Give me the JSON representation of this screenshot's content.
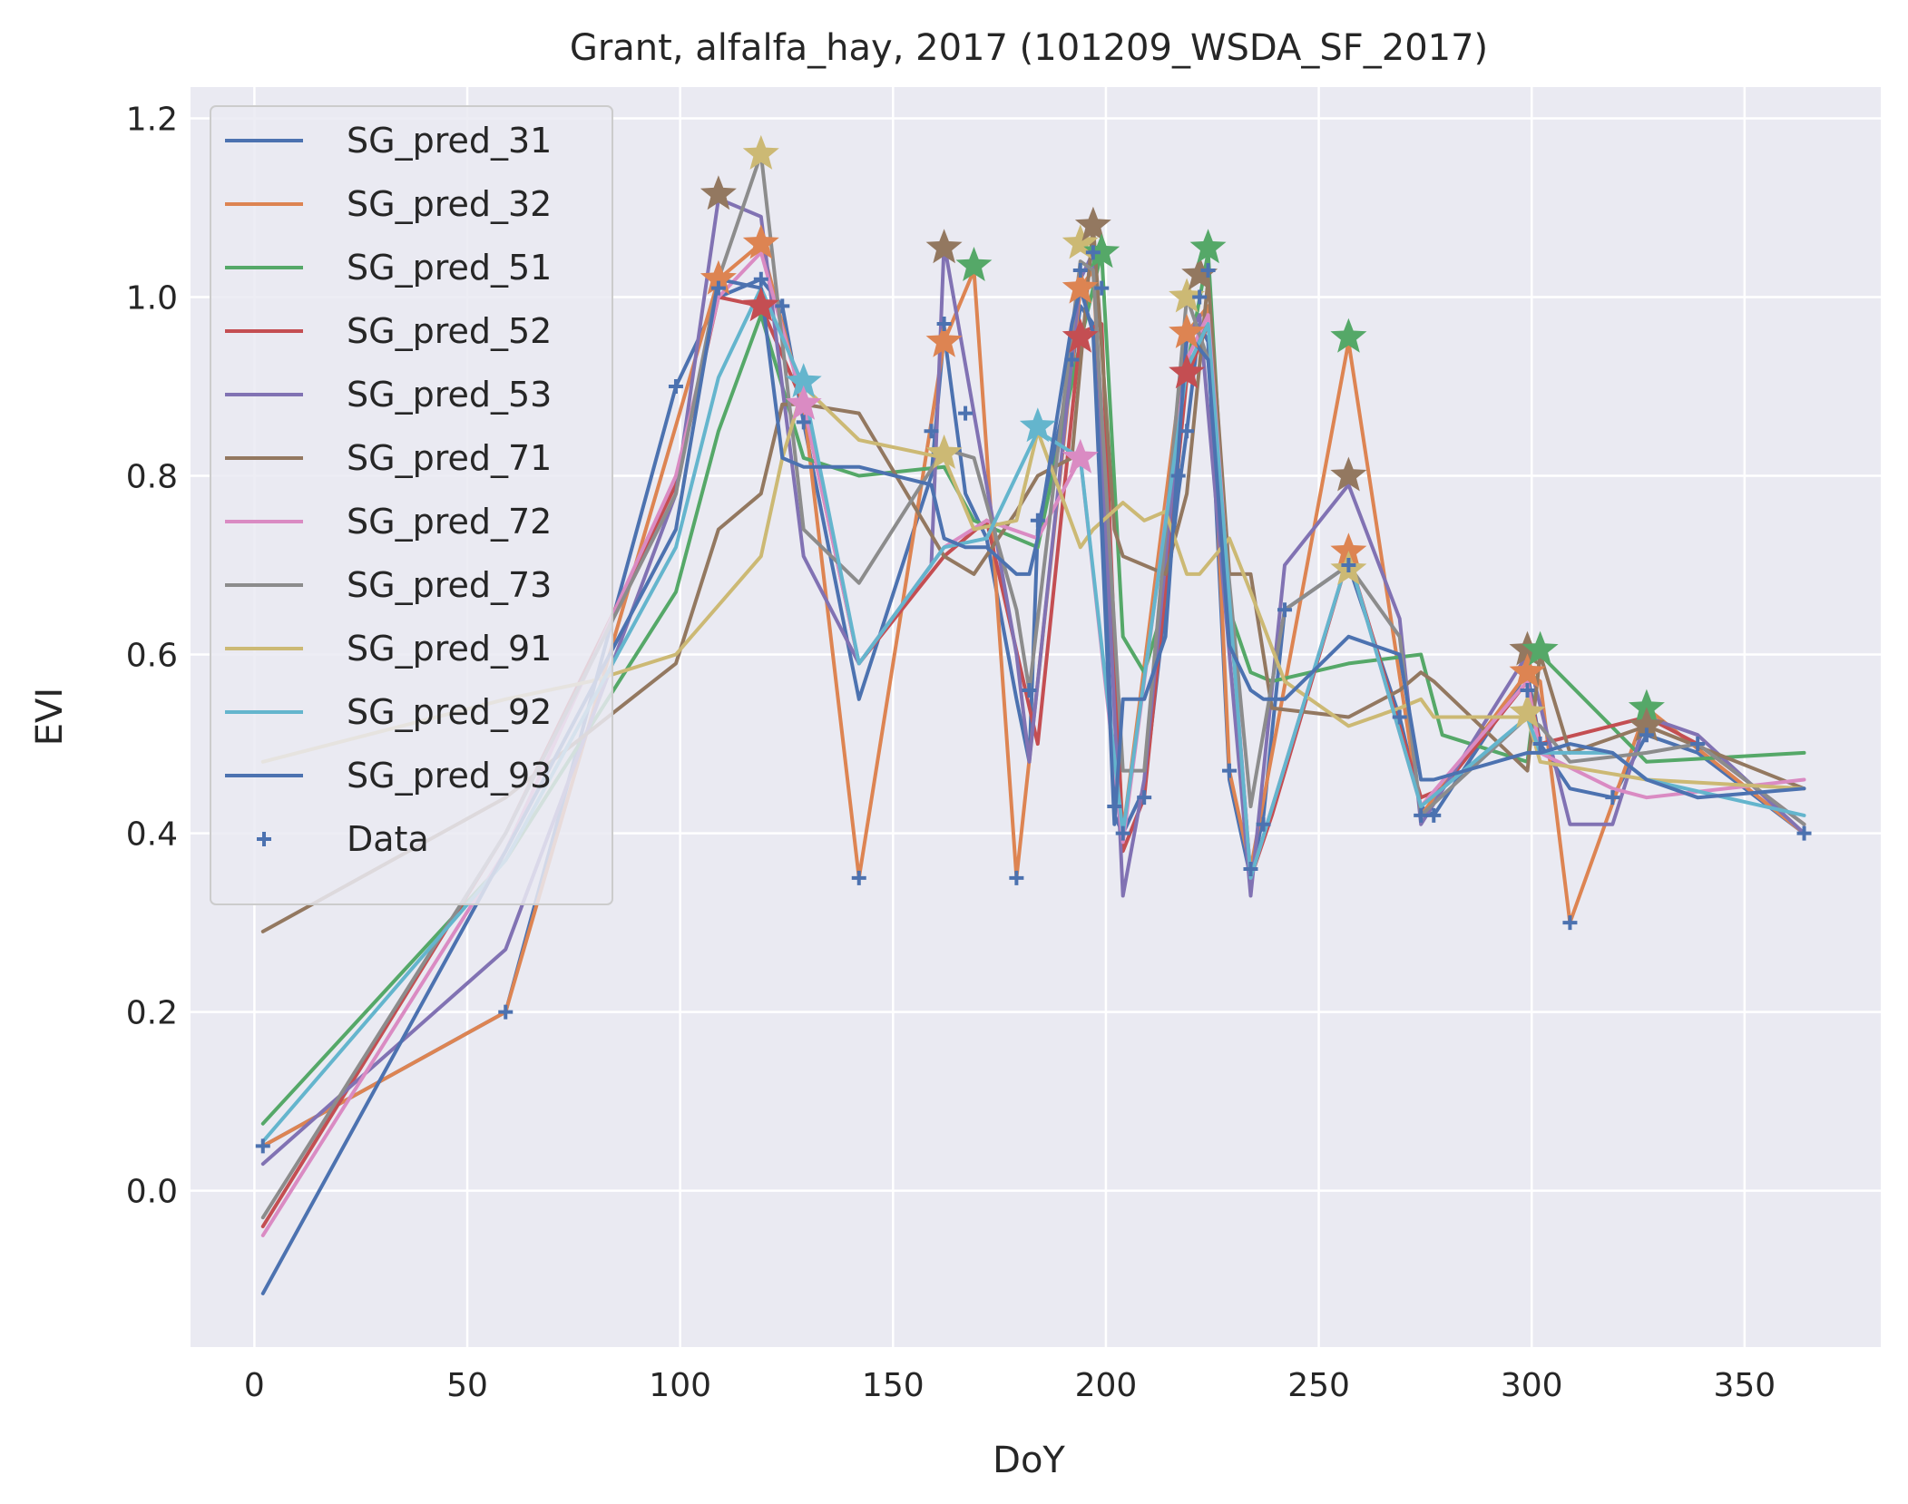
{
  "chart_data": {
    "type": "line",
    "title": "Grant, alfalfa_hay, 2017 (101209_WSDA_SF_2017)",
    "xlabel": "DoY",
    "ylabel": "EVI",
    "xlim": [
      -15,
      382
    ],
    "ylim": [
      -0.175,
      1.235
    ],
    "xticks": [
      0,
      50,
      100,
      150,
      200,
      250,
      300,
      350
    ],
    "yticks": [
      0.0,
      0.2,
      0.4,
      0.6,
      0.8,
      1.0,
      1.2
    ],
    "grid": true,
    "legend_position": "top-left",
    "background": "#eaeaf2",
    "series": [
      {
        "name": "SG_pred_31",
        "color": "#4c72b0",
        "x": [
          2,
          59,
          99,
          109,
          119,
          124,
          129,
          142,
          159,
          162,
          167,
          172,
          179,
          182,
          184,
          192,
          194,
          197,
          199,
          202,
          204,
          207,
          209,
          217,
          219,
          222,
          224,
          229,
          234,
          237,
          242,
          257,
          269,
          274,
          277,
          299,
          302,
          309,
          319,
          327,
          339,
          364
        ],
        "y": [
          0.05,
          0.2,
          0.9,
          1.0,
          1.02,
          0.99,
          0.86,
          0.55,
          0.8,
          0.96,
          0.78,
          0.73,
          0.55,
          0.48,
          0.74,
          0.92,
          0.99,
          0.97,
          0.8,
          0.42,
          0.4,
          0.43,
          0.45,
          0.78,
          0.85,
          0.97,
          0.95,
          0.46,
          0.35,
          0.42,
          0.65,
          0.7,
          0.53,
          0.43,
          0.42,
          0.58,
          0.5,
          0.45,
          0.44,
          0.51,
          0.49,
          0.4
        ]
      },
      {
        "name": "SG_pred_32",
        "color": "#dd8452",
        "x": [
          2,
          59,
          109,
          119,
          129,
          142,
          162,
          169,
          179,
          194,
          197,
          204,
          219,
          224,
          229,
          234,
          257,
          274,
          299,
          302,
          309,
          327,
          364
        ],
        "y": [
          0.05,
          0.2,
          1.02,
          1.06,
          0.88,
          0.35,
          0.95,
          1.03,
          0.35,
          1.01,
          1.03,
          0.4,
          0.96,
          0.99,
          0.47,
          0.36,
          0.95,
          0.42,
          0.58,
          0.57,
          0.3,
          0.54,
          0.4
        ]
      },
      {
        "name": "SG_pred_51",
        "color": "#55a868",
        "x": [
          2,
          59,
          99,
          109,
          119,
          129,
          142,
          162,
          169,
          184,
          194,
          199,
          204,
          209,
          214,
          219,
          224,
          229,
          234,
          239,
          257,
          274,
          279,
          299,
          302,
          327,
          364
        ],
        "y": [
          0.075,
          0.37,
          0.67,
          0.85,
          0.98,
          0.82,
          0.8,
          0.81,
          0.75,
          0.72,
          0.95,
          1.05,
          0.62,
          0.58,
          0.66,
          0.92,
          1.05,
          0.65,
          0.58,
          0.57,
          0.59,
          0.6,
          0.51,
          0.48,
          0.6,
          0.48,
          0.49
        ]
      },
      {
        "name": "SG_pred_52",
        "color": "#c44e52",
        "x": [
          2,
          59,
          99,
          109,
          119,
          129,
          142,
          162,
          172,
          184,
          194,
          199,
          204,
          209,
          219,
          224,
          234,
          239,
          257,
          274,
          279,
          299,
          302,
          327,
          339,
          364
        ],
        "y": [
          -0.04,
          0.4,
          0.79,
          1.0,
          0.99,
          0.88,
          0.59,
          0.71,
          0.75,
          0.5,
          0.96,
          0.97,
          0.38,
          0.44,
          0.91,
          0.97,
          0.35,
          0.42,
          0.71,
          0.44,
          0.45,
          0.57,
          0.5,
          0.53,
          0.5,
          0.41
        ]
      },
      {
        "name": "SG_pred_53",
        "color": "#8172b3",
        "x": [
          2,
          59,
          99,
          109,
          119,
          129,
          142,
          159,
          162,
          169,
          179,
          182,
          194,
          197,
          204,
          209,
          219,
          222,
          234,
          242,
          257,
          269,
          274,
          299,
          309,
          319,
          327,
          339,
          364
        ],
        "y": [
          0.03,
          0.27,
          0.78,
          1.11,
          1.09,
          0.71,
          0.59,
          0.7,
          1.06,
          0.87,
          0.6,
          0.48,
          1.02,
          1.05,
          0.33,
          0.46,
          0.95,
          0.98,
          0.33,
          0.7,
          0.79,
          0.64,
          0.41,
          0.6,
          0.41,
          0.41,
          0.53,
          0.51,
          0.4
        ]
      },
      {
        "name": "SG_pred_71",
        "color": "#937860",
        "x": [
          2,
          59,
          99,
          109,
          119,
          124,
          129,
          142,
          162,
          169,
          179,
          184,
          192,
          197,
          202,
          204,
          214,
          219,
          224,
          229,
          234,
          239,
          257,
          269,
          274,
          277,
          299,
          302,
          309,
          327,
          364
        ],
        "y": [
          0.29,
          0.44,
          0.59,
          0.74,
          0.78,
          0.88,
          0.88,
          0.87,
          0.71,
          0.69,
          0.76,
          0.8,
          0.82,
          1.08,
          0.74,
          0.71,
          0.69,
          0.78,
          1.02,
          0.69,
          0.69,
          0.54,
          0.53,
          0.56,
          0.58,
          0.57,
          0.47,
          0.6,
          0.49,
          0.52,
          0.45
        ]
      },
      {
        "name": "SG_pred_72",
        "color": "#da8bc3",
        "x": [
          2,
          59,
          99,
          109,
          119,
          129,
          142,
          162,
          172,
          184,
          194,
          204,
          219,
          224,
          234,
          257,
          274,
          299,
          302,
          319,
          327,
          364
        ],
        "y": [
          -0.05,
          0.38,
          0.8,
          1.0,
          1.05,
          0.88,
          0.59,
          0.72,
          0.75,
          0.73,
          0.82,
          0.39,
          0.93,
          0.98,
          0.35,
          0.71,
          0.43,
          0.57,
          0.49,
          0.45,
          0.44,
          0.46
        ]
      },
      {
        "name": "SG_pred_73",
        "color": "#8c8c8c",
        "x": [
          2,
          59,
          99,
          109,
          119,
          129,
          142,
          162,
          169,
          179,
          182,
          194,
          197,
          204,
          209,
          219,
          224,
          234,
          242,
          257,
          269,
          274,
          299,
          302,
          309,
          327,
          339,
          364
        ],
        "y": [
          -0.03,
          0.4,
          0.78,
          1.02,
          1.16,
          0.74,
          0.68,
          0.83,
          0.82,
          0.65,
          0.56,
          1.04,
          1.03,
          0.47,
          0.47,
          1.0,
          0.93,
          0.43,
          0.65,
          0.7,
          0.62,
          0.42,
          0.53,
          0.52,
          0.48,
          0.49,
          0.5,
          0.41
        ]
      },
      {
        "name": "SG_pred_91",
        "color": "#ccb974",
        "x": [
          2,
          59,
          79,
          99,
          119,
          124,
          129,
          142,
          162,
          169,
          179,
          184,
          194,
          197,
          204,
          209,
          214,
          219,
          222,
          229,
          234,
          242,
          257,
          269,
          274,
          277,
          299,
          302,
          327,
          364
        ],
        "y": [
          0.48,
          0.55,
          0.57,
          0.6,
          0.71,
          0.82,
          0.9,
          0.84,
          0.82,
          0.74,
          0.75,
          0.85,
          0.72,
          0.74,
          0.77,
          0.75,
          0.76,
          0.69,
          0.69,
          0.73,
          0.67,
          0.57,
          0.52,
          0.54,
          0.55,
          0.53,
          0.53,
          0.48,
          0.46,
          0.45
        ]
      },
      {
        "name": "SG_pred_92",
        "color": "#64b5cd",
        "x": [
          2,
          59,
          99,
          109,
          119,
          129,
          142,
          162,
          172,
          184,
          194,
          204,
          219,
          224,
          234,
          257,
          274,
          299,
          302,
          319,
          327,
          364
        ],
        "y": [
          0.055,
          0.37,
          0.72,
          0.91,
          1.01,
          0.9,
          0.59,
          0.72,
          0.73,
          0.85,
          0.82,
          0.4,
          0.92,
          0.97,
          0.35,
          0.71,
          0.43,
          0.53,
          0.49,
          0.49,
          0.46,
          0.42
        ]
      },
      {
        "name": "SG_pred_93",
        "color": "#4c72b0",
        "x": [
          2,
          59,
          99,
          109,
          119,
          124,
          129,
          142,
          159,
          162,
          167,
          172,
          179,
          182,
          184,
          192,
          194,
          197,
          202,
          204,
          209,
          214,
          219,
          224,
          229,
          234,
          237,
          242,
          257,
          269,
          274,
          277,
          299,
          302,
          309,
          319,
          327,
          339,
          364
        ],
        "y": [
          -0.115,
          0.38,
          0.74,
          1.02,
          1.01,
          0.82,
          0.81,
          0.81,
          0.79,
          0.73,
          0.72,
          0.72,
          0.69,
          0.69,
          0.73,
          0.97,
          1.01,
          0.96,
          0.41,
          0.55,
          0.55,
          0.62,
          0.96,
          0.93,
          0.61,
          0.56,
          0.55,
          0.55,
          0.62,
          0.6,
          0.46,
          0.46,
          0.49,
          0.49,
          0.5,
          0.49,
          0.46,
          0.44,
          0.45
        ]
      }
    ],
    "stars": [
      {
        "x": 109,
        "y": 1.115,
        "color": "#937860"
      },
      {
        "x": 119,
        "y": 1.16,
        "color": "#ccb974"
      },
      {
        "x": 119,
        "y": 1.06,
        "color": "#dd8452"
      },
      {
        "x": 109,
        "y": 1.02,
        "color": "#dd8452"
      },
      {
        "x": 119,
        "y": 0.99,
        "color": "#c44e52"
      },
      {
        "x": 129,
        "y": 0.905,
        "color": "#64b5cd"
      },
      {
        "x": 129,
        "y": 0.88,
        "color": "#da8bc3"
      },
      {
        "x": 162,
        "y": 1.055,
        "color": "#937860"
      },
      {
        "x": 162,
        "y": 0.95,
        "color": "#dd8452"
      },
      {
        "x": 162,
        "y": 0.825,
        "color": "#ccb974"
      },
      {
        "x": 169,
        "y": 1.035,
        "color": "#55a868"
      },
      {
        "x": 184,
        "y": 0.855,
        "color": "#64b5cd"
      },
      {
        "x": 194,
        "y": 0.82,
        "color": "#da8bc3"
      },
      {
        "x": 194,
        "y": 0.955,
        "color": "#c44e52"
      },
      {
        "x": 194,
        "y": 1.01,
        "color": "#dd8452"
      },
      {
        "x": 194,
        "y": 1.06,
        "color": "#ccb974"
      },
      {
        "x": 197,
        "y": 1.08,
        "color": "#937860"
      },
      {
        "x": 199,
        "y": 1.05,
        "color": "#55a868"
      },
      {
        "x": 219,
        "y": 0.915,
        "color": "#c44e52"
      },
      {
        "x": 219,
        "y": 0.96,
        "color": "#dd8452"
      },
      {
        "x": 219,
        "y": 1.0,
        "color": "#ccb974"
      },
      {
        "x": 222,
        "y": 1.025,
        "color": "#937860"
      },
      {
        "x": 224,
        "y": 1.055,
        "color": "#55a868"
      },
      {
        "x": 257,
        "y": 0.955,
        "color": "#55a868"
      },
      {
        "x": 257,
        "y": 0.8,
        "color": "#937860"
      },
      {
        "x": 257,
        "y": 0.715,
        "color": "#dd8452"
      },
      {
        "x": 257,
        "y": 0.695,
        "color": "#ccb974"
      },
      {
        "x": 299,
        "y": 0.605,
        "color": "#937860"
      },
      {
        "x": 299,
        "y": 0.58,
        "color": "#dd8452"
      },
      {
        "x": 299,
        "y": 0.535,
        "color": "#ccb974"
      },
      {
        "x": 302,
        "y": 0.605,
        "color": "#55a868"
      },
      {
        "x": 327,
        "y": 0.54,
        "color": "#55a868"
      },
      {
        "x": 327,
        "y": 0.52,
        "color": "#937860"
      }
    ],
    "data_points": {
      "name": "Data",
      "color": "#4c72b0",
      "x": [
        2,
        59,
        99,
        109,
        119,
        124,
        129,
        142,
        159,
        162,
        167,
        179,
        182,
        184,
        192,
        194,
        197,
        199,
        202,
        204,
        209,
        217,
        219,
        222,
        224,
        229,
        234,
        237,
        242,
        257,
        269,
        274,
        277,
        299,
        302,
        309,
        319,
        327,
        339,
        364
      ],
      "y": [
        0.05,
        0.2,
        0.9,
        1.01,
        1.02,
        0.99,
        0.86,
        0.35,
        0.85,
        0.97,
        0.87,
        0.35,
        0.56,
        0.75,
        0.93,
        1.03,
        1.05,
        1.01,
        0.43,
        0.4,
        0.44,
        0.8,
        0.85,
        1.0,
        1.03,
        0.47,
        0.36,
        0.41,
        0.65,
        0.7,
        0.53,
        0.42,
        0.42,
        0.56,
        0.5,
        0.3,
        0.44,
        0.51,
        0.5,
        0.4
      ]
    }
  }
}
